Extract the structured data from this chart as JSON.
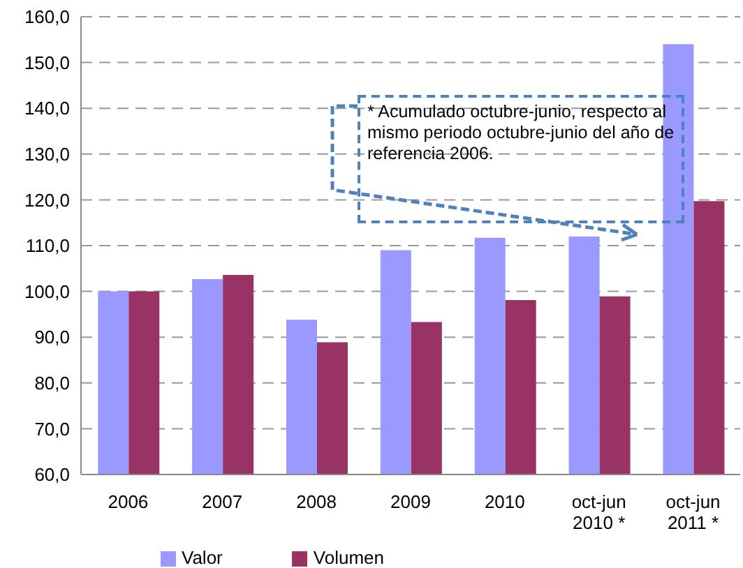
{
  "chart_data": {
    "type": "bar",
    "categories": [
      "2006",
      "2007",
      "2008",
      "2009",
      "2010",
      "oct-jun 2010 *",
      "oct-jun 2011 *"
    ],
    "series": [
      {
        "name": "Valor",
        "color": "#9999ff",
        "values": [
          100,
          102.7,
          93.8,
          109,
          111.7,
          112,
          154
        ]
      },
      {
        "name": "Volumen",
        "color": "#993366",
        "values": [
          100,
          103.6,
          88.9,
          93.3,
          98.1,
          98.9,
          119.7
        ]
      }
    ],
    "ylim": [
      60,
      160
    ],
    "yticks": [
      {
        "value": 60,
        "label": "60,0"
      },
      {
        "value": 70,
        "label": "70,0"
      },
      {
        "value": 80,
        "label": "80,0"
      },
      {
        "value": 90,
        "label": "90,0"
      },
      {
        "value": 100,
        "label": "100,0"
      },
      {
        "value": 110,
        "label": "110,0"
      },
      {
        "value": 120,
        "label": "120,0"
      },
      {
        "value": 130,
        "label": "130,0"
      },
      {
        "value": 140,
        "label": "140,0"
      },
      {
        "value": 150,
        "label": "150,0"
      },
      {
        "value": 160,
        "label": "160,0"
      }
    ],
    "grid": "y",
    "legend": "bottom",
    "annotations": [
      "*  Acumulado octubre-junio, respecto al mismo periodo octubre-junio del año de referencia  2006."
    ]
  }
}
